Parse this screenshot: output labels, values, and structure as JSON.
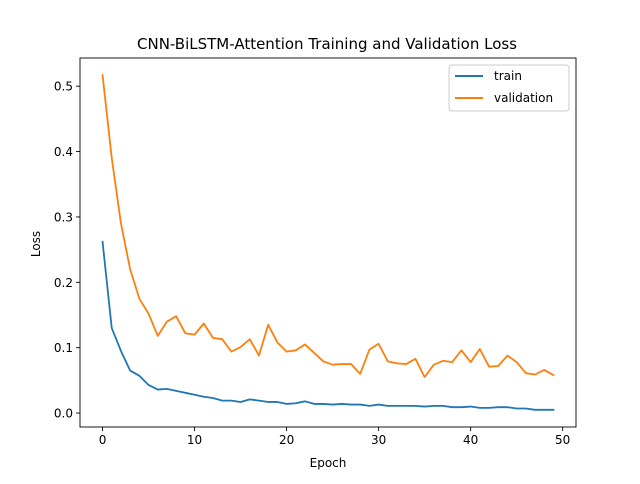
{
  "chart_data": {
    "type": "line",
    "title": "CNN-BiLSTM-Attention Training and Validation Loss",
    "xlabel": "Epoch",
    "ylabel": "Loss",
    "xlim": [
      -2.45,
      51.45
    ],
    "ylim": [
      -0.0213,
      0.5431
    ],
    "xticks": [
      0,
      10,
      20,
      30,
      40,
      50
    ],
    "xtick_labels": [
      "0",
      "10",
      "20",
      "30",
      "40",
      "50"
    ],
    "yticks": [
      0.0,
      0.1,
      0.2,
      0.3,
      0.4,
      0.5
    ],
    "ytick_labels": [
      "0.0",
      "0.1",
      "0.2",
      "0.3",
      "0.4",
      "0.5"
    ],
    "grid": false,
    "legend_position": "top-right",
    "x": [
      0,
      1,
      2,
      3,
      4,
      5,
      6,
      7,
      8,
      9,
      10,
      11,
      12,
      13,
      14,
      15,
      16,
      17,
      18,
      19,
      20,
      21,
      22,
      23,
      24,
      25,
      26,
      27,
      28,
      29,
      30,
      31,
      32,
      33,
      34,
      35,
      36,
      37,
      38,
      39,
      40,
      41,
      42,
      43,
      44,
      45,
      46,
      47,
      48,
      49
    ],
    "series": [
      {
        "name": "train",
        "color": "#1f77b4",
        "values": [
          0.262,
          0.13,
          0.095,
          0.065,
          0.057,
          0.043,
          0.036,
          0.037,
          0.034,
          0.031,
          0.028,
          0.025,
          0.023,
          0.019,
          0.019,
          0.017,
          0.021,
          0.019,
          0.017,
          0.017,
          0.014,
          0.015,
          0.018,
          0.014,
          0.014,
          0.013,
          0.014,
          0.013,
          0.013,
          0.011,
          0.013,
          0.011,
          0.011,
          0.011,
          0.011,
          0.01,
          0.011,
          0.011,
          0.009,
          0.009,
          0.01,
          0.008,
          0.008,
          0.009,
          0.009,
          0.007,
          0.007,
          0.005,
          0.005,
          0.005
        ]
      },
      {
        "name": "validation",
        "color": "#ff7f0e",
        "values": [
          0.517,
          0.39,
          0.29,
          0.22,
          0.175,
          0.152,
          0.118,
          0.14,
          0.148,
          0.122,
          0.12,
          0.137,
          0.115,
          0.113,
          0.094,
          0.101,
          0.113,
          0.088,
          0.135,
          0.108,
          0.094,
          0.096,
          0.105,
          0.092,
          0.079,
          0.074,
          0.075,
          0.075,
          0.06,
          0.097,
          0.106,
          0.079,
          0.076,
          0.075,
          0.083,
          0.055,
          0.074,
          0.08,
          0.078,
          0.096,
          0.078,
          0.098,
          0.071,
          0.072,
          0.088,
          0.078,
          0.061,
          0.059,
          0.066,
          0.058
        ]
      }
    ]
  }
}
